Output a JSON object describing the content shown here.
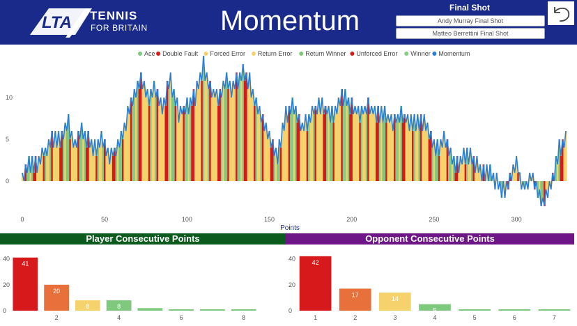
{
  "header": {
    "brand_logo": "LTA",
    "brand_name": "TENNIS",
    "brand_tagline": "FOR BRITAIN",
    "title": "Momentum",
    "final_shot_title": "Final Shot",
    "final_shot_options": [
      "Andy Murray Final Shot",
      "Matteo Berrettini Final Shot"
    ],
    "back_icon": "undo-arrow-icon"
  },
  "colors": {
    "header_bg": "#1a2a8a",
    "ace": "#7fc97f",
    "double_fault": "#d7191c",
    "forced_error": "#f5d26b",
    "return_error": "#f5d26b",
    "return_winner": "#7fc97f",
    "unforced_error": "#d7191c",
    "winner": "#86cc86",
    "momentum": "#2a7fd4"
  },
  "chart_data": [
    {
      "type": "area",
      "title": "Momentum",
      "xlabel": "Points",
      "ylabel": "",
      "xlim": [
        0,
        330
      ],
      "ylim": [
        -3,
        14
      ],
      "xticks": [
        0,
        50,
        100,
        150,
        200,
        250,
        300
      ],
      "yticks": [
        0,
        5,
        10
      ],
      "legend": [
        "Ace",
        "Double Fault",
        "Forced Error",
        "Return Error",
        "Return Winner",
        "Unforced Error",
        "Winner",
        "Momentum"
      ],
      "legend_colors": [
        "#7fc97f",
        "#d7191c",
        "#f5d26b",
        "#f5d26b",
        "#7fc97f",
        "#d7191c",
        "#86cc86",
        "#2a7fd4"
      ],
      "legend_position": "top-center",
      "keyframes": [
        [
          0,
          0
        ],
        [
          3,
          2
        ],
        [
          8,
          2
        ],
        [
          12,
          3
        ],
        [
          18,
          5
        ],
        [
          23,
          5
        ],
        [
          28,
          7
        ],
        [
          32,
          4
        ],
        [
          36,
          6
        ],
        [
          40,
          5
        ],
        [
          44,
          4
        ],
        [
          48,
          5
        ],
        [
          53,
          3
        ],
        [
          58,
          4
        ],
        [
          63,
          7
        ],
        [
          67,
          10
        ],
        [
          72,
          12
        ],
        [
          76,
          10
        ],
        [
          80,
          11
        ],
        [
          85,
          9
        ],
        [
          90,
          12
        ],
        [
          95,
          8
        ],
        [
          100,
          9
        ],
        [
          105,
          10
        ],
        [
          110,
          14
        ],
        [
          114,
          11
        ],
        [
          119,
          10
        ],
        [
          123,
          12
        ],
        [
          128,
          11
        ],
        [
          133,
          13
        ],
        [
          138,
          12
        ],
        [
          142,
          9
        ],
        [
          146,
          7
        ],
        [
          150,
          5
        ],
        [
          155,
          3
        ],
        [
          160,
          8
        ],
        [
          165,
          9
        ],
        [
          170,
          6
        ],
        [
          175,
          8
        ],
        [
          180,
          9
        ],
        [
          188,
          8
        ],
        [
          195,
          10
        ],
        [
          200,
          9
        ],
        [
          205,
          8
        ],
        [
          210,
          9
        ],
        [
          215,
          8
        ],
        [
          220,
          8
        ],
        [
          225,
          7
        ],
        [
          230,
          8
        ],
        [
          235,
          7
        ],
        [
          240,
          7
        ],
        [
          245,
          7
        ],
        [
          248,
          5
        ],
        [
          252,
          4
        ],
        [
          256,
          5
        ],
        [
          260,
          3
        ],
        [
          264,
          2
        ],
        [
          268,
          3
        ],
        [
          272,
          3
        ],
        [
          276,
          2
        ],
        [
          280,
          1
        ],
        [
          284,
          1
        ],
        [
          288,
          0
        ],
        [
          292,
          -1
        ],
        [
          296,
          0
        ],
        [
          300,
          2
        ],
        [
          303,
          0
        ],
        [
          306,
          -1
        ],
        [
          309,
          1
        ],
        [
          313,
          -1
        ],
        [
          316,
          -3
        ],
        [
          319,
          -1
        ],
        [
          322,
          0
        ],
        [
          326,
          4
        ],
        [
          330,
          5
        ]
      ]
    },
    {
      "type": "bar",
      "title": "Player Consecutive Points",
      "categories": [
        1,
        2,
        3,
        4,
        5,
        6,
        7,
        8
      ],
      "values": [
        41,
        20,
        8,
        8,
        2,
        0,
        0,
        1
      ],
      "xticks": [
        2,
        4,
        6,
        8
      ],
      "yticks": [
        0,
        20,
        40
      ],
      "ylim": [
        0,
        43
      ],
      "labels_shown": [
        true,
        true,
        true,
        true,
        false,
        false,
        false,
        false
      ],
      "colors": [
        "#d7191c",
        "#e8703a",
        "#f5d26b",
        "#7fc97f",
        "#7fc97f",
        "#7fc97f",
        "#7fc97f",
        "#7fc97f"
      ]
    },
    {
      "type": "bar",
      "title": "Opponent Consecutive Points",
      "categories": [
        1,
        2,
        3,
        4,
        5,
        6,
        7
      ],
      "values": [
        42,
        17,
        14,
        5,
        1,
        1,
        1
      ],
      "xticks": [
        1,
        2,
        3,
        4,
        5,
        6,
        7
      ],
      "yticks": [
        0,
        20,
        40
      ],
      "ylim": [
        0,
        43
      ],
      "labels_shown": [
        true,
        true,
        true,
        true,
        false,
        false,
        false
      ],
      "colors": [
        "#d7191c",
        "#e8703a",
        "#f5d26b",
        "#7fc97f",
        "#7fc97f",
        "#7fc97f",
        "#7fc97f"
      ]
    }
  ]
}
